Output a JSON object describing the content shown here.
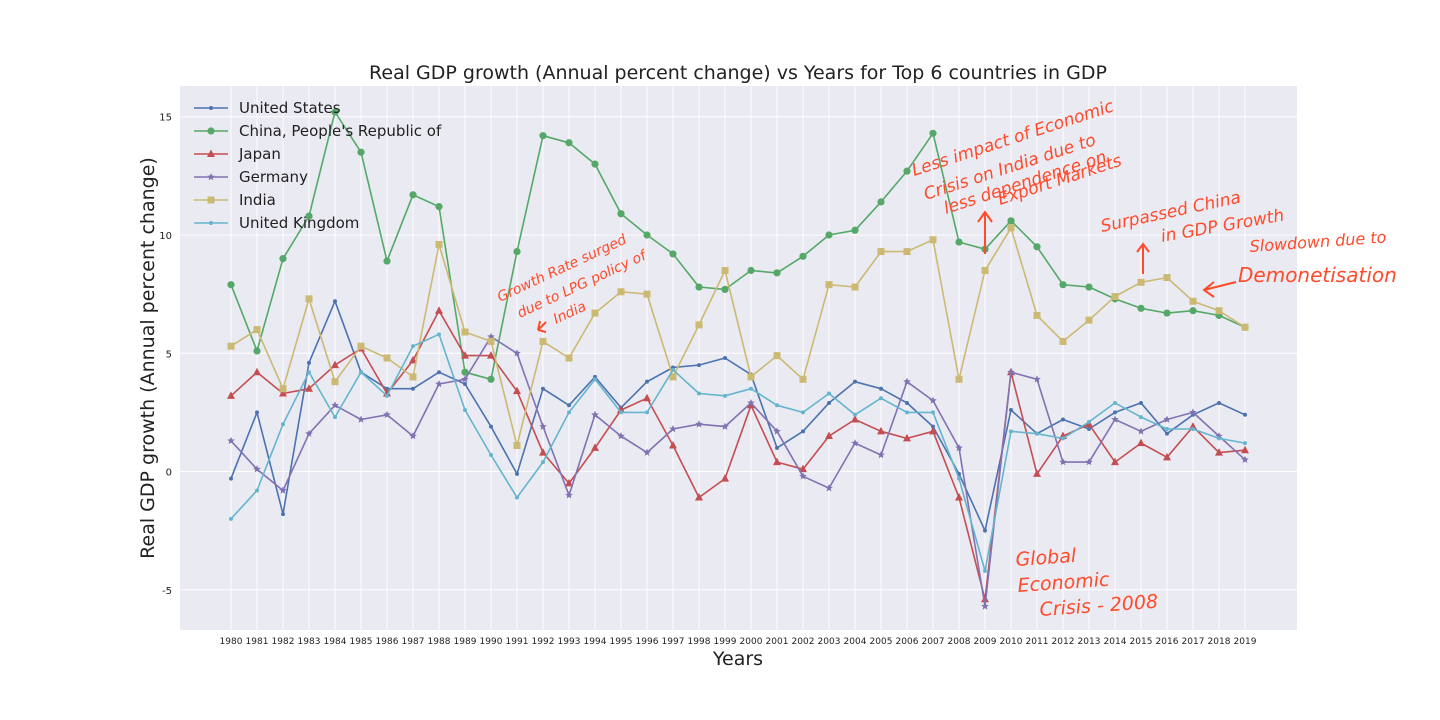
{
  "chart_data": {
    "type": "line",
    "title": "Real GDP growth (Annual percent change) vs Years for Top 6 countries in GDP",
    "xlabel": "Years",
    "ylabel": "Real GDP growth (Annual percent change)",
    "ylim": [
      -6.7,
      16.3
    ],
    "yticks": [
      -5,
      0,
      5,
      10,
      15
    ],
    "grid": true,
    "legend_position": "top-left",
    "categories": [
      "1980",
      "1981",
      "1982",
      "1983",
      "1984",
      "1985",
      "1986",
      "1987",
      "1988",
      "1989",
      "1990",
      "1991",
      "1992",
      "1993",
      "1994",
      "1995",
      "1996",
      "1997",
      "1998",
      "1999",
      "2000",
      "2001",
      "2002",
      "2003",
      "2004",
      "2005",
      "2006",
      "2007",
      "2008",
      "2009",
      "2010",
      "2011",
      "2012",
      "2013",
      "2014",
      "2015",
      "2016",
      "2017",
      "2018",
      "2019"
    ],
    "series": [
      {
        "name": "United States",
        "color": "#4c72b0",
        "marker": "dot",
        "values": [
          -0.3,
          2.5,
          -1.8,
          4.6,
          7.2,
          4.2,
          3.5,
          3.5,
          4.2,
          3.7,
          1.9,
          -0.1,
          3.5,
          2.8,
          4.0,
          2.7,
          3.8,
          4.4,
          4.5,
          4.8,
          4.1,
          1.0,
          1.7,
          2.9,
          3.8,
          3.5,
          2.9,
          1.9,
          -0.1,
          -2.5,
          2.6,
          1.6,
          2.2,
          1.8,
          2.5,
          2.9,
          1.6,
          2.4,
          2.9,
          2.4
        ]
      },
      {
        "name": "China, People's Republic of",
        "color": "#55a868",
        "marker": "circle",
        "values": [
          7.9,
          5.1,
          9.0,
          10.8,
          15.2,
          13.5,
          8.9,
          11.7,
          11.2,
          4.2,
          3.9,
          9.3,
          14.2,
          13.9,
          13.0,
          10.9,
          10.0,
          9.2,
          7.8,
          7.7,
          8.5,
          8.4,
          9.1,
          10.0,
          10.2,
          11.4,
          12.7,
          14.3,
          9.7,
          9.4,
          10.6,
          9.5,
          7.9,
          7.8,
          7.3,
          6.9,
          6.7,
          6.8,
          6.6,
          6.1
        ]
      },
      {
        "name": "Japan",
        "color": "#c44e52",
        "marker": "triangle",
        "values": [
          3.2,
          4.2,
          3.3,
          3.5,
          4.5,
          5.2,
          3.3,
          4.7,
          6.8,
          4.9,
          4.9,
          3.4,
          0.8,
          -0.5,
          1.0,
          2.6,
          3.1,
          1.1,
          -1.1,
          -0.3,
          2.8,
          0.4,
          0.1,
          1.5,
          2.2,
          1.7,
          1.4,
          1.7,
          -1.1,
          -5.4,
          4.2,
          -0.1,
          1.5,
          2.0,
          0.4,
          1.2,
          0.6,
          1.9,
          0.8,
          0.9
        ]
      },
      {
        "name": "Germany",
        "color": "#8172b2",
        "marker": "star",
        "values": [
          1.3,
          0.1,
          -0.8,
          1.6,
          2.8,
          2.2,
          2.4,
          1.5,
          3.7,
          3.9,
          5.7,
          5.0,
          1.9,
          -1.0,
          2.4,
          1.5,
          0.8,
          1.8,
          2.0,
          1.9,
          2.9,
          1.7,
          -0.2,
          -0.7,
          1.2,
          0.7,
          3.8,
          3.0,
          1.0,
          -5.7,
          4.2,
          3.9,
          0.4,
          0.4,
          2.2,
          1.7,
          2.2,
          2.5,
          1.5,
          0.5
        ]
      },
      {
        "name": "India",
        "color": "#ccb974",
        "marker": "square",
        "values": [
          5.3,
          6.0,
          3.5,
          7.3,
          3.8,
          5.3,
          4.8,
          4.0,
          9.6,
          5.9,
          5.5,
          1.1,
          5.5,
          4.8,
          6.7,
          7.6,
          7.5,
          4.0,
          6.2,
          8.5,
          4.0,
          4.9,
          3.9,
          7.9,
          7.8,
          9.3,
          9.3,
          9.8,
          3.9,
          8.5,
          10.3,
          6.6,
          5.5,
          6.4,
          7.4,
          8.0,
          8.2,
          7.2,
          6.8,
          6.1
        ]
      },
      {
        "name": "United Kingdom",
        "color": "#64b5cd",
        "marker": "dot",
        "values": [
          -2.0,
          -0.8,
          2.0,
          4.2,
          2.3,
          4.2,
          3.2,
          5.3,
          5.8,
          2.6,
          0.7,
          -1.1,
          0.4,
          2.5,
          3.9,
          2.5,
          2.5,
          4.3,
          3.3,
          3.2,
          3.5,
          2.8,
          2.5,
          3.3,
          2.4,
          3.1,
          2.5,
          2.5,
          -0.3,
          -4.2,
          1.7,
          1.6,
          1.4,
          2.1,
          2.9,
          2.3,
          1.8,
          1.8,
          1.4,
          1.2
        ]
      }
    ],
    "annotations": [
      {
        "id": "lpg",
        "color": "#ff4b2b",
        "lines": [
          "Growth Rate surged",
          "due to LPG policy of",
          "India"
        ]
      },
      {
        "id": "crisis-impact",
        "color": "#ff4b2b",
        "lines": [
          "Less impact of Economic",
          "Crisis on India due to",
          "less dependence on",
          "Export Markets"
        ]
      },
      {
        "id": "surpassed",
        "color": "#ff4b2b",
        "lines": [
          "Surpassed China",
          "in GDP Growth"
        ]
      },
      {
        "id": "slowdown",
        "color": "#ff4b2b",
        "lines": [
          "Slowdown due to",
          "Demonetisation"
        ]
      },
      {
        "id": "global-crisis",
        "color": "#ff4b2b",
        "lines": [
          "Global",
          "Economic",
          "Crisis - 2008"
        ]
      }
    ]
  }
}
